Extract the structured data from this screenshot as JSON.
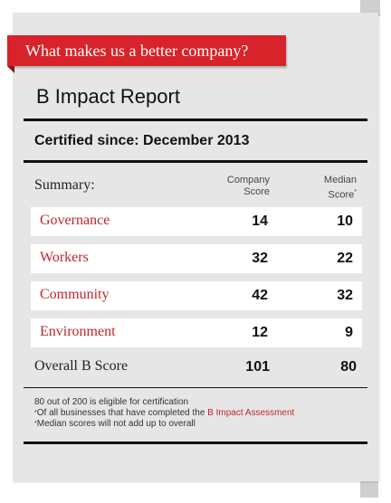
{
  "banner": {
    "text": "What makes us a better company?"
  },
  "report": {
    "title": "B Impact Report",
    "certified_label": "Certified since:",
    "certified_date": "December 2013",
    "summary_label": "Summary:",
    "col_company_line1": "Company",
    "col_company_line2": "Score",
    "col_median_line1": "Median",
    "col_median_line2": "Score",
    "col_median_mark": "*"
  },
  "rows": [
    {
      "label": "Governance",
      "company": "14",
      "median": "10"
    },
    {
      "label": "Workers",
      "company": "32",
      "median": "22"
    },
    {
      "label": "Community",
      "company": "42",
      "median": "32"
    },
    {
      "label": "Environment",
      "company": "12",
      "median": "9"
    }
  ],
  "overall": {
    "label": "Overall B Score",
    "company": "101",
    "median": "80"
  },
  "footnotes": {
    "line1": "80 out of 200 is eligible for certification",
    "line2_mark": "*",
    "line2_text": "Of all businesses that have completed the ",
    "line2_link": "B Impact Assessment",
    "line3_mark": "*",
    "line3_text": "Median scores will not add up to overall"
  },
  "colors": {
    "accent": "#d8232a",
    "link": "#c0262d",
    "card": "#e6e6e6"
  }
}
